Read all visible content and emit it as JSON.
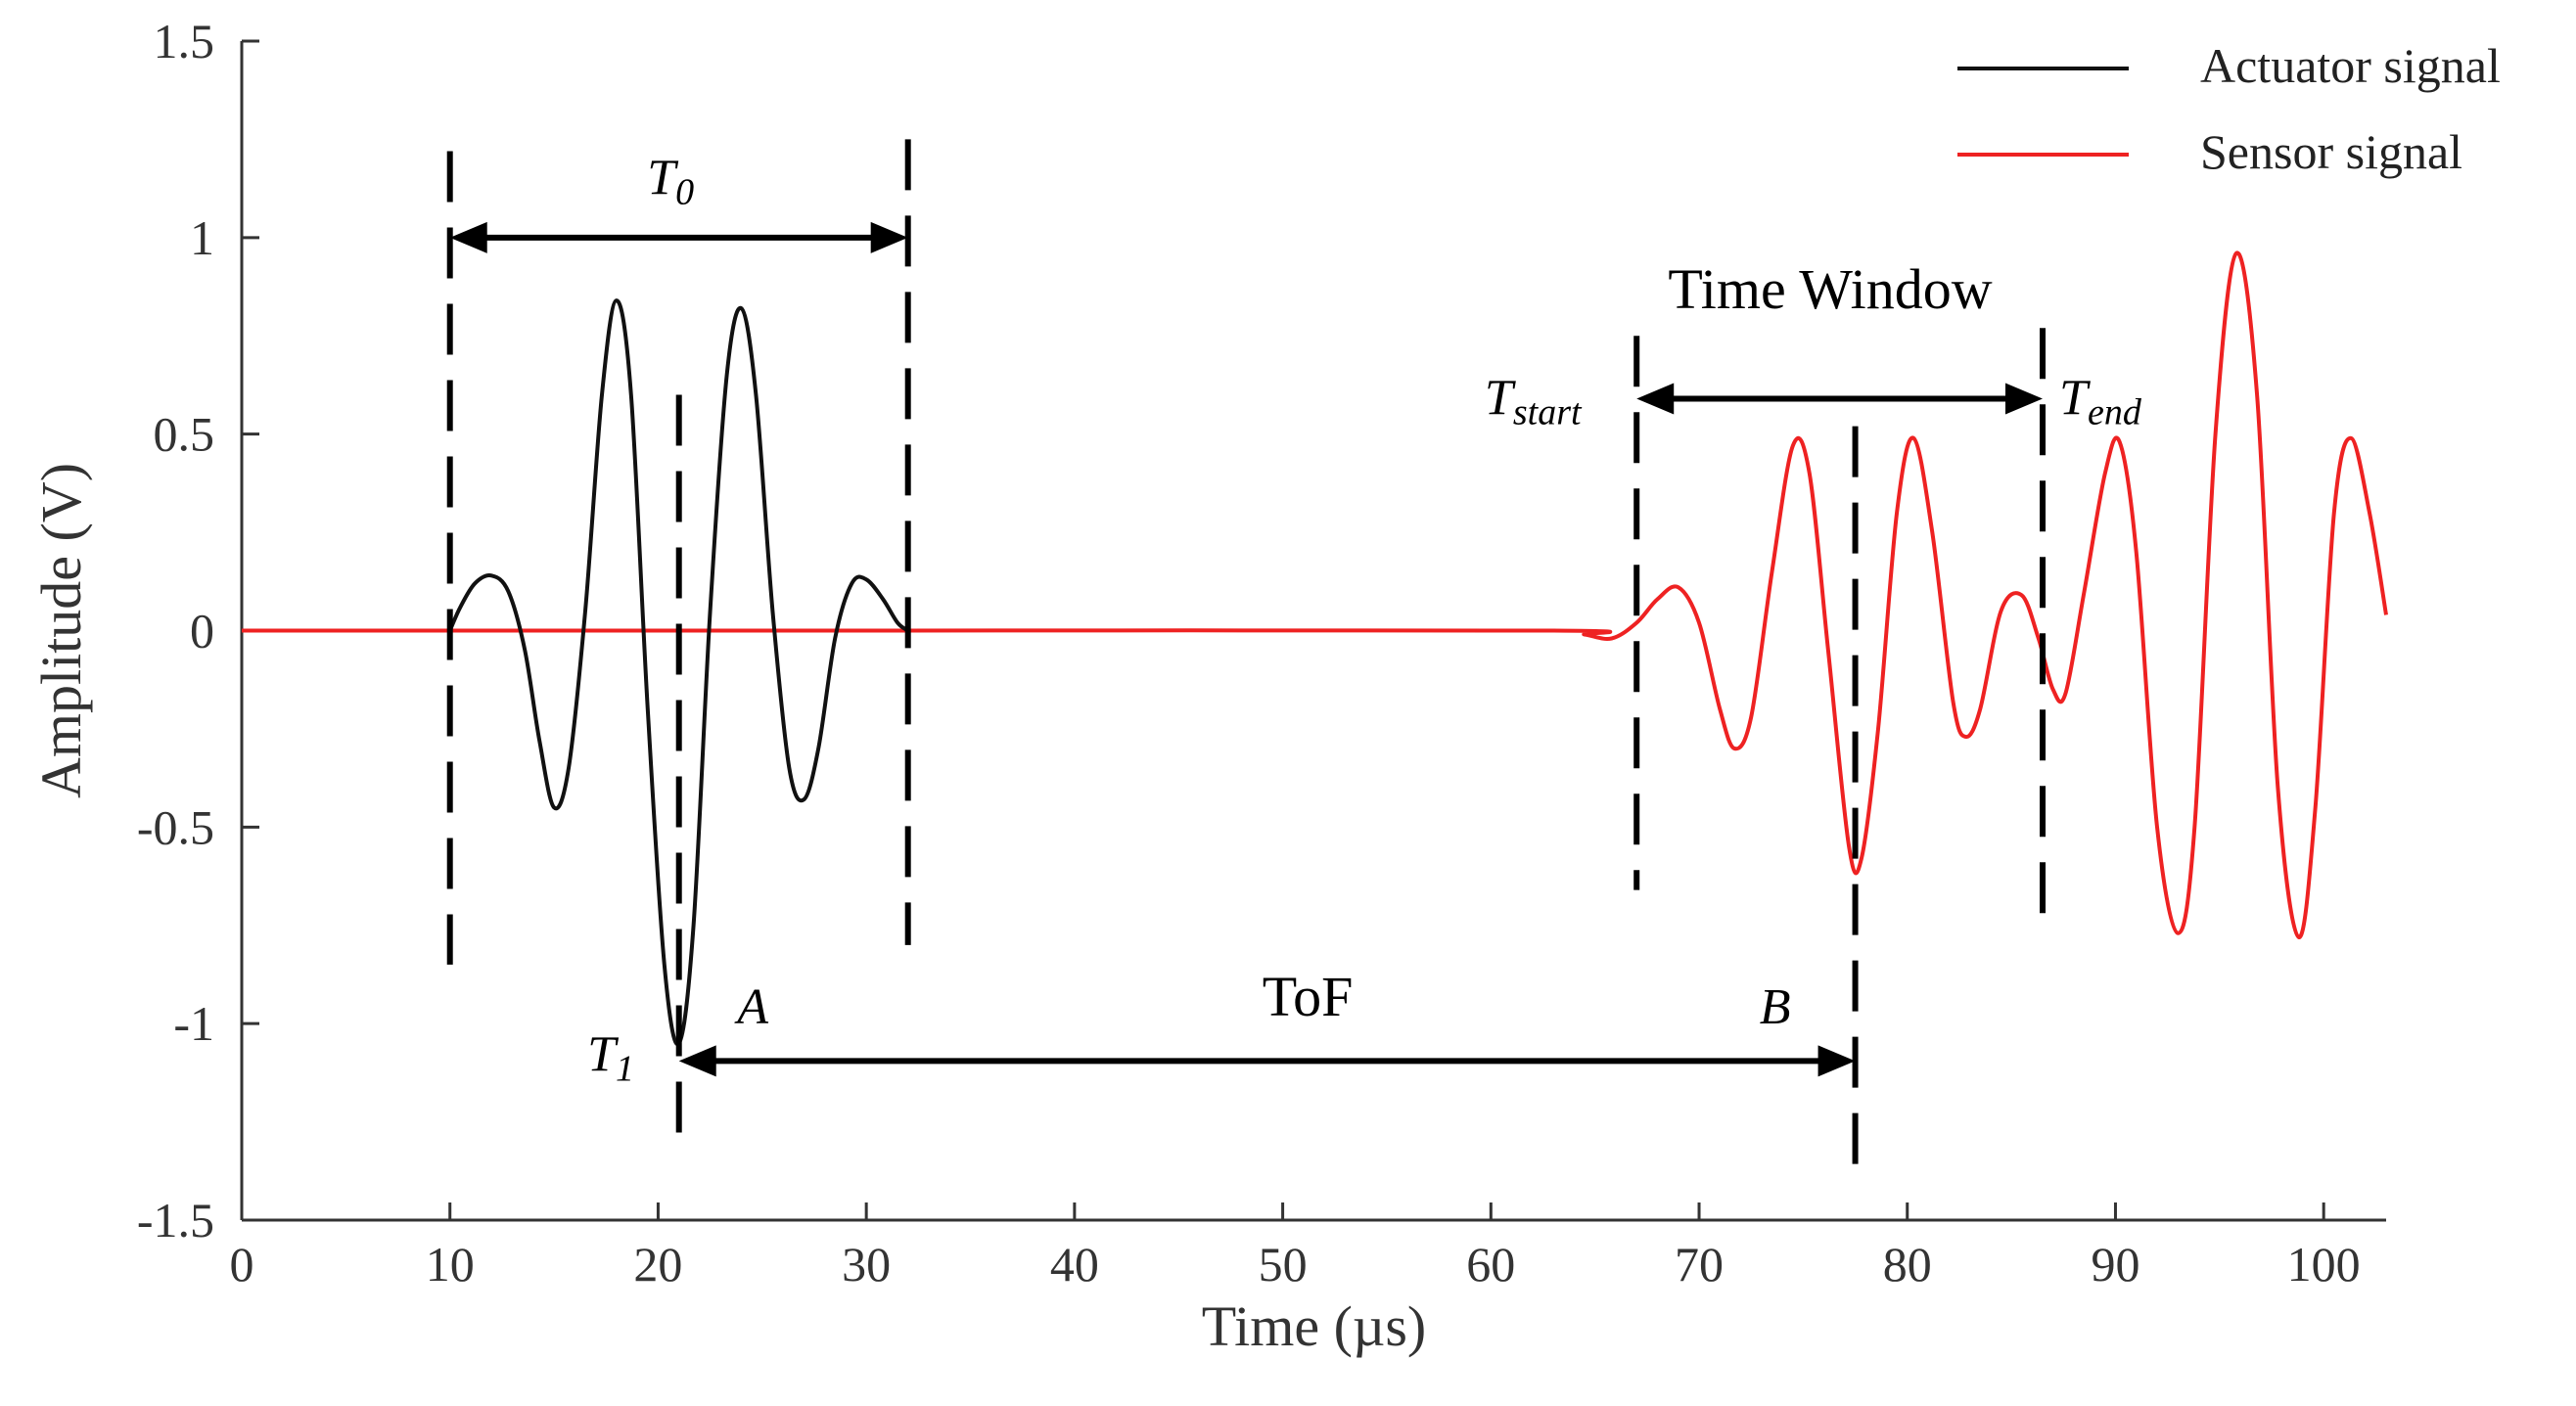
{
  "chart_data": {
    "type": "line",
    "xlabel": "Time (µs)",
    "ylabel": "Amplitude (V)",
    "xlim": [
      0,
      103
    ],
    "ylim": [
      -1.5,
      1.5
    ],
    "x_ticks": [
      0,
      10,
      20,
      30,
      40,
      50,
      60,
      70,
      80,
      90,
      100
    ],
    "y_ticks": [
      1.5,
      1,
      0.5,
      0,
      -0.5,
      -1,
      -1.5
    ],
    "y_tick_labels": [
      "1.5",
      "1",
      "0.5",
      "0",
      "-0.5",
      "-1",
      "-1.5"
    ],
    "legend_position": "top-right",
    "grid": false,
    "series": [
      {
        "name": "Actuator signal",
        "color": "#111111",
        "points": [
          [
            10,
            0.0
          ],
          [
            10.5,
            0.06
          ],
          [
            11.2,
            0.12
          ],
          [
            12,
            0.14
          ],
          [
            12.8,
            0.1
          ],
          [
            13.6,
            -0.05
          ],
          [
            14.3,
            -0.28
          ],
          [
            15,
            -0.45
          ],
          [
            15.7,
            -0.35
          ],
          [
            16.5,
            0.05
          ],
          [
            17.3,
            0.6
          ],
          [
            18,
            0.84
          ],
          [
            18.7,
            0.6
          ],
          [
            19.5,
            -0.2
          ],
          [
            20.3,
            -0.85
          ],
          [
            21,
            -1.05
          ],
          [
            21.7,
            -0.75
          ],
          [
            22.5,
            0.05
          ],
          [
            23.3,
            0.65
          ],
          [
            24,
            0.82
          ],
          [
            24.7,
            0.6
          ],
          [
            25.5,
            0.05
          ],
          [
            26.3,
            -0.35
          ],
          [
            27,
            -0.43
          ],
          [
            27.7,
            -0.3
          ],
          [
            28.5,
            -0.02
          ],
          [
            29.3,
            0.12
          ],
          [
            30,
            0.13
          ],
          [
            30.8,
            0.08
          ],
          [
            31.5,
            0.02
          ],
          [
            32,
            0.0
          ]
        ]
      },
      {
        "name": "Sensor signal",
        "color": "#ee2222",
        "points": [
          [
            0,
            0.0
          ],
          [
            10,
            0.0
          ],
          [
            32,
            0.0
          ],
          [
            63,
            0.0
          ],
          [
            64.5,
            -0.01
          ],
          [
            65.8,
            -0.02
          ],
          [
            67,
            0.02
          ],
          [
            68,
            0.08
          ],
          [
            69,
            0.11
          ],
          [
            70,
            0.02
          ],
          [
            71,
            -0.2
          ],
          [
            71.7,
            -0.3
          ],
          [
            72.5,
            -0.22
          ],
          [
            73.5,
            0.15
          ],
          [
            74.5,
            0.47
          ],
          [
            75.3,
            0.4
          ],
          [
            76.2,
            -0.05
          ],
          [
            77.2,
            -0.55
          ],
          [
            77.8,
            -0.58
          ],
          [
            78.6,
            -0.25
          ],
          [
            79.5,
            0.3
          ],
          [
            80.3,
            0.49
          ],
          [
            81.2,
            0.25
          ],
          [
            82.2,
            -0.18
          ],
          [
            82.8,
            -0.27
          ],
          [
            83.5,
            -0.2
          ],
          [
            84.5,
            0.05
          ],
          [
            85.5,
            0.09
          ],
          [
            86.3,
            -0.02
          ],
          [
            87,
            -0.15
          ],
          [
            87.6,
            -0.16
          ],
          [
            88.5,
            0.1
          ],
          [
            89.5,
            0.4
          ],
          [
            90.2,
            0.48
          ],
          [
            91,
            0.2
          ],
          [
            92,
            -0.5
          ],
          [
            93,
            -0.77
          ],
          [
            93.8,
            -0.5
          ],
          [
            94.8,
            0.5
          ],
          [
            95.8,
            0.96
          ],
          [
            96.8,
            0.6
          ],
          [
            97.8,
            -0.4
          ],
          [
            98.8,
            -0.78
          ],
          [
            99.6,
            -0.45
          ],
          [
            100.5,
            0.3
          ],
          [
            101.3,
            0.49
          ],
          [
            102.2,
            0.3
          ],
          [
            103,
            0.04
          ]
        ]
      }
    ],
    "annotations": {
      "t0": {
        "label": "T",
        "sub": "0",
        "from": 10,
        "to": 32
      },
      "t1": {
        "label": "T",
        "sub": "1"
      },
      "point_a": "A",
      "point_b": "B",
      "tof": {
        "label": "ToF",
        "from": 21,
        "to": 77.5
      },
      "time_window": {
        "label": "Time Window",
        "from": 67,
        "to": 86.5
      },
      "t_start": {
        "label": "T",
        "sub": "start"
      },
      "t_end": {
        "label": "T",
        "sub": "end"
      },
      "markers": [
        {
          "x": 10,
          "y_from": 1.22,
          "y_to": -0.85
        },
        {
          "x": 32,
          "y_from": 1.25,
          "y_to": -0.8
        },
        {
          "x": 21,
          "y_from": 0.6,
          "y_to": -1.32
        },
        {
          "x": 67,
          "y_from": 0.75,
          "y_to": -0.66
        },
        {
          "x": 77.5,
          "y_from": 0.52,
          "y_to": -1.4
        },
        {
          "x": 86.5,
          "y_from": 0.77,
          "y_to": -0.74
        }
      ]
    }
  }
}
